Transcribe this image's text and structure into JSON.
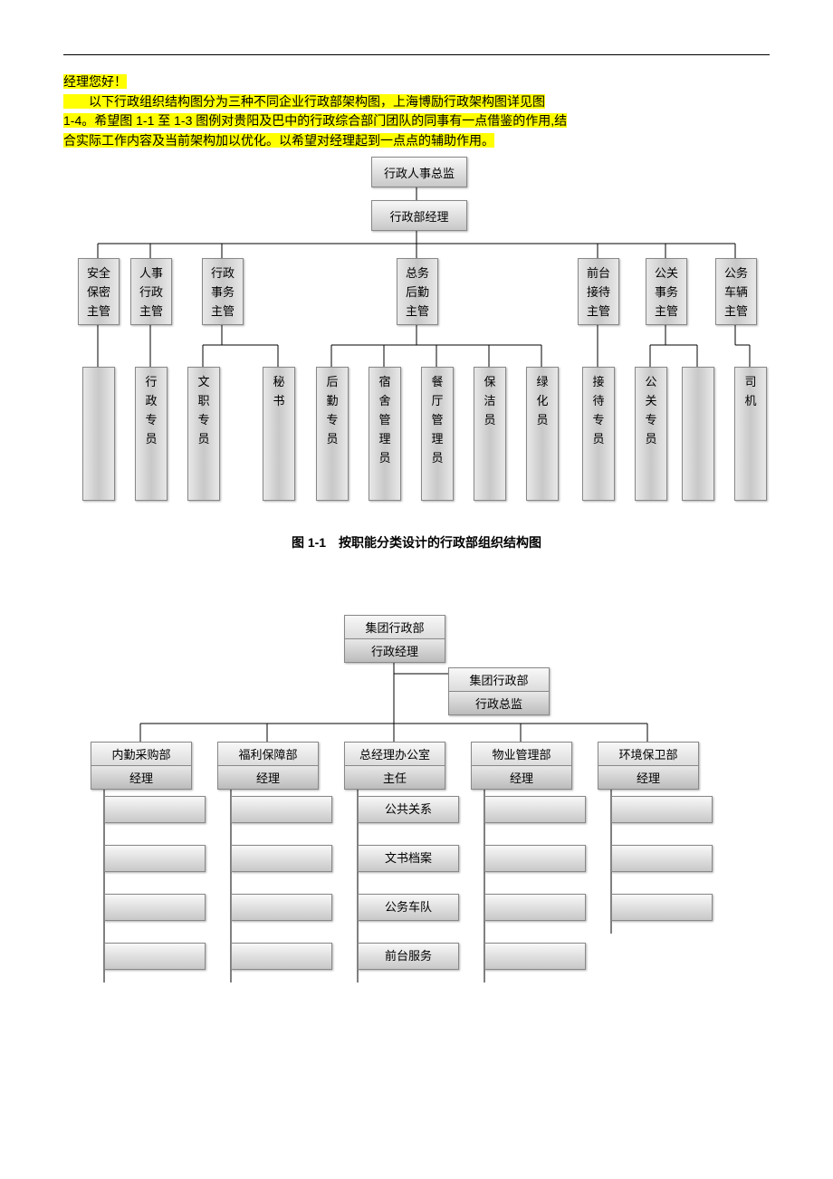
{
  "intro": {
    "line1": "经理您好！",
    "line2_pref": "　　以下行政组织结构图分为三种不同企业行政部架构图，上海博励行政架构图详见图",
    "line3": "1-4。希望图 1-1 至 1-3 图例对贵阳及巴中的行政综合部门团队的同事有一点借鉴的作用,结",
    "line4": "合实际工作内容及当前架构加以优化。以希望对经理起到一点点的辅助作用。"
  },
  "chart1": {
    "top1": "行政人事总监",
    "top2": "行政部经理",
    "managers": [
      "安全\n保密\n主管",
      "人事\n行政\n主管",
      "行政\n事务\n主管",
      "总务\n后勤\n主管",
      "前台\n接待\n主管",
      "公关\n事务\n主管",
      "公务\n车辆\n主管"
    ],
    "staff": [
      "",
      "行政专员",
      "文职专员",
      "秘书",
      "后勤专员",
      "宿舍管理员",
      "餐厅管理员",
      "保洁员",
      "绿化员",
      "接待专员",
      "公关专员",
      "",
      "司机"
    ],
    "caption": "图 1-1　按职能分类设计的行政部组织结构图"
  },
  "chart2": {
    "root": {
      "t": "集团行政部",
      "b": "行政经理"
    },
    "side": {
      "t": "集团行政部",
      "b": "行政总监"
    },
    "depts": [
      {
        "t": "内勤采购部",
        "b": "经理"
      },
      {
        "t": "福利保障部",
        "b": "经理"
      },
      {
        "t": "总经理办公室",
        "b": "主任"
      },
      {
        "t": "物业管理部",
        "b": "经理"
      },
      {
        "t": "环境保卫部",
        "b": "经理"
      }
    ],
    "centerItems": [
      "公共关系",
      "文书档案",
      "公务车队",
      "前台服务"
    ],
    "blankCounts": [
      4,
      4,
      0,
      4,
      3
    ]
  }
}
